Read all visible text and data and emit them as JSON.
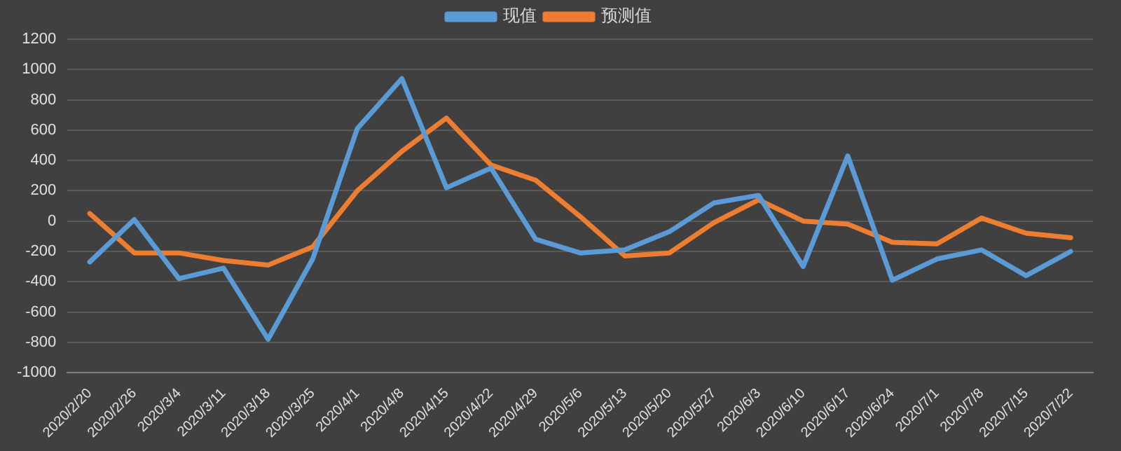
{
  "chart_data": {
    "type": "line",
    "categories": [
      "2020/2/20",
      "2020/2/26",
      "2020/3/4",
      "2020/3/11",
      "2020/3/18",
      "2020/3/25",
      "2020/4/1",
      "2020/4/8",
      "2020/4/15",
      "2020/4/22",
      "2020/4/29",
      "2020/5/6",
      "2020/5/13",
      "2020/5/20",
      "2020/5/27",
      "2020/6/3",
      "2020/6/10",
      "2020/6/17",
      "2020/6/24",
      "2020/7/1",
      "2020/7/8",
      "2020/7/15",
      "2020/7/22"
    ],
    "series": [
      {
        "name": "现值",
        "color": "#5b9bd5",
        "values": [
          -270,
          10,
          -380,
          -310,
          -780,
          -250,
          610,
          940,
          220,
          350,
          -120,
          -210,
          -190,
          -70,
          120,
          170,
          -300,
          430,
          -390,
          -250,
          -190,
          -360,
          -200
        ]
      },
      {
        "name": "预测值",
        "color": "#ed7d31",
        "values": [
          50,
          -210,
          -210,
          -260,
          -290,
          -170,
          200,
          460,
          680,
          370,
          270,
          30,
          -230,
          -210,
          -10,
          140,
          0,
          -20,
          -140,
          -150,
          20,
          -80,
          -110
        ]
      }
    ],
    "ylim": [
      -1000,
      1200
    ],
    "yticks": [
      -1000,
      -800,
      -600,
      -400,
      -200,
      0,
      200,
      400,
      600,
      800,
      1000,
      1200
    ],
    "grid": "y",
    "legend": "top",
    "marker": "none",
    "line_style": "solid"
  }
}
